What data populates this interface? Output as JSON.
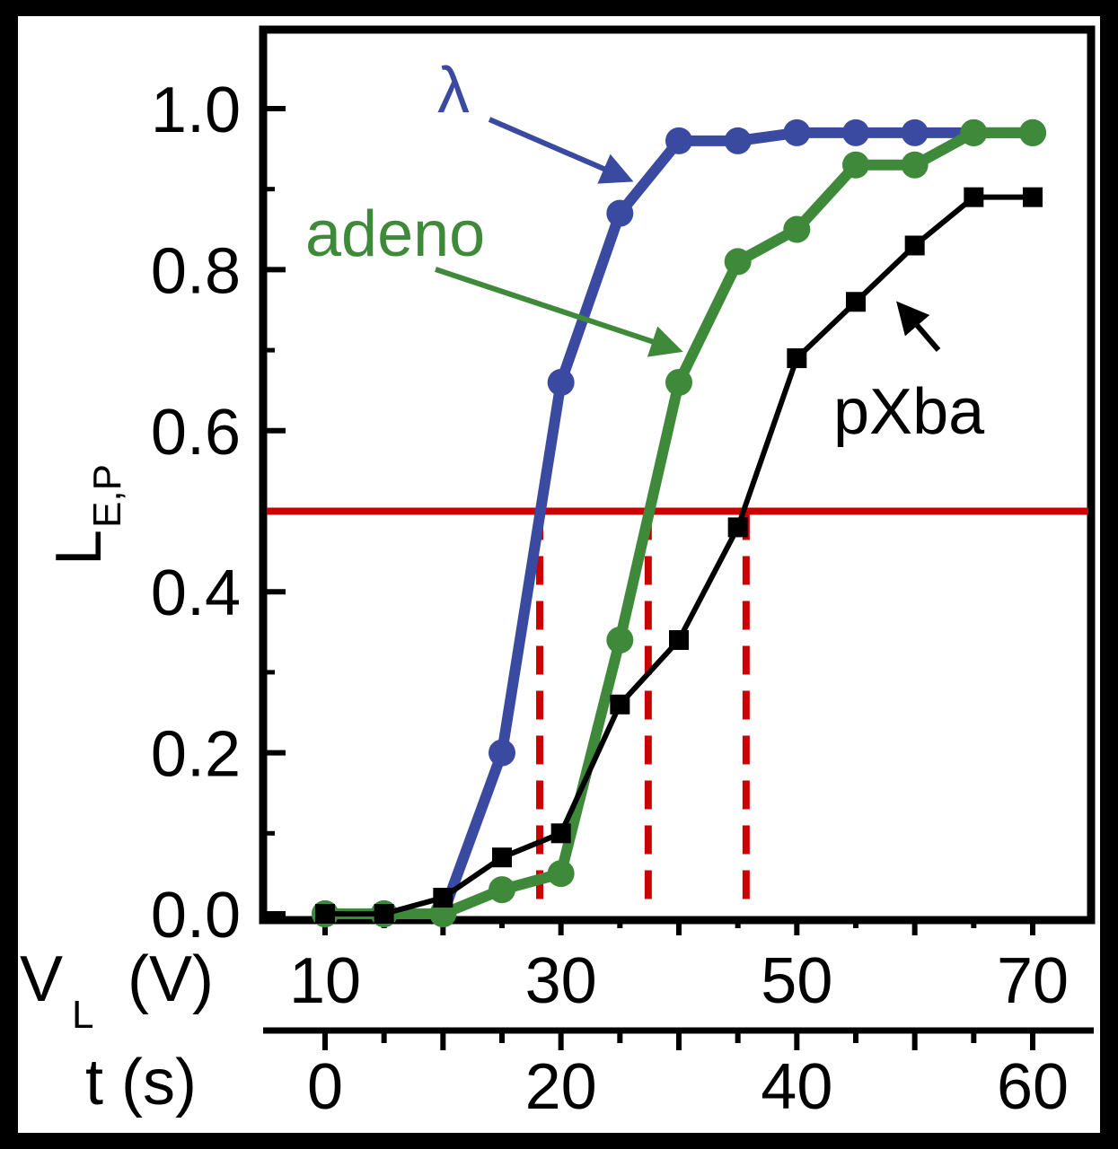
{
  "chart_data": {
    "type": "line",
    "xlabel_primary": "V",
    "xlabel_primary_sub": "L",
    "xlabel_primary_unit": "(V)",
    "xlabel_secondary": "t (s)",
    "ylabel": "L",
    "ylabel_sub": "E,P",
    "xlim": [
      5,
      72
    ],
    "ylim": [
      0,
      1.1
    ],
    "x_ticks_primary": [
      10,
      30,
      50,
      70
    ],
    "x_ticks_secondary": [
      {
        "v": 10,
        "label": "0"
      },
      {
        "v": 30,
        "label": "20"
      },
      {
        "v": 50,
        "label": "40"
      },
      {
        "v": 70,
        "label": "60"
      }
    ],
    "y_ticks": [
      0.0,
      0.2,
      0.4,
      0.6,
      0.8,
      1.0
    ],
    "y_tick_labels": [
      "0.0",
      "0.2",
      "0.4",
      "0.6",
      "0.8",
      "1.0"
    ],
    "threshold": {
      "y": 0.5,
      "color": "#cc0000"
    },
    "crossings": [
      {
        "series": "λ",
        "x": 28.2
      },
      {
        "series": "adeno",
        "x": 37.4
      },
      {
        "series": "pXba",
        "x": 45.7
      }
    ],
    "series": [
      {
        "name": "λ",
        "color": "#3a4aa0",
        "marker": "circle",
        "x": [
          10,
          15,
          20,
          25,
          30,
          35,
          40,
          45,
          50,
          55,
          60,
          65,
          70
        ],
        "y": [
          0.0,
          0.0,
          0.0,
          0.2,
          0.66,
          0.87,
          0.96,
          0.96,
          0.97,
          0.97,
          0.97,
          0.97,
          0.97
        ]
      },
      {
        "name": "adeno",
        "color": "#3f8a3a",
        "marker": "circle",
        "x": [
          10,
          15,
          20,
          25,
          30,
          35,
          40,
          45,
          50,
          55,
          60,
          65,
          70
        ],
        "y": [
          0.0,
          0.0,
          0.0,
          0.03,
          0.05,
          0.34,
          0.66,
          0.81,
          0.85,
          0.93,
          0.93,
          0.97,
          0.97
        ]
      },
      {
        "name": "pXba",
        "color": "#000000",
        "marker": "square",
        "x": [
          10,
          15,
          20,
          25,
          30,
          35,
          40,
          45,
          50,
          55,
          60,
          65,
          70
        ],
        "y": [
          0.0,
          0.0,
          0.02,
          0.07,
          0.1,
          0.26,
          0.34,
          0.48,
          0.69,
          0.76,
          0.83,
          0.89,
          0.89
        ]
      }
    ],
    "annotations": [
      {
        "text": "λ",
        "color": "#3a4aa0"
      },
      {
        "text": "adeno",
        "color": "#3f8a3a"
      },
      {
        "text": "pXba",
        "color": "#000000"
      }
    ],
    "grid": false
  }
}
